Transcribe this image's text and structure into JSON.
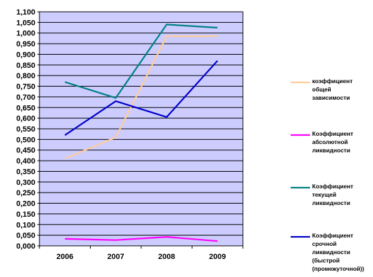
{
  "chart_data": {
    "type": "line",
    "categories": [
      "2006",
      "2007",
      "2008",
      "2009"
    ],
    "ylim": [
      0,
      1.1
    ],
    "y_ticks": [
      "0,000",
      "0,050",
      "0,100",
      "0,150",
      "0,200",
      "0,250",
      "0,300",
      "0,350",
      "0,400",
      "0,450",
      "0,500",
      "0,550",
      "0,600",
      "0,650",
      "0,700",
      "0,750",
      "0,800",
      "0,850",
      "0,900",
      "0,950",
      "1,000",
      "1,050",
      "1,100"
    ],
    "grid": true,
    "legend_position": "right",
    "plot_background": "#ccccff",
    "series": [
      {
        "name": "коэффициент общей зависимости",
        "legend_lines": [
          "коэффициент",
          "общей",
          "зависимости"
        ],
        "color": "#ffcc99",
        "values": [
          0.41,
          0.51,
          0.985,
          0.985
        ]
      },
      {
        "name": "Коэффициент абсолютной ликвидности",
        "legend_lines": [
          "Коэффициент",
          "абсолютной",
          "ликвидности"
        ],
        "color": "#ff00ff",
        "values": [
          0.033,
          0.027,
          0.042,
          0.022
        ]
      },
      {
        "name": "Коэффициент текущей ликвидности",
        "legend_lines": [
          "Коэффициент",
          "текущей",
          "ликвидности"
        ],
        "color": "#008080",
        "values": [
          0.77,
          0.695,
          1.04,
          1.025
        ]
      },
      {
        "name": "Коэффициент срочной ликвидности (быстрой (промежуточной))",
        "legend_lines": [
          "Коэффициент",
          "срочной",
          "ликвидности",
          "(быстрой",
          "(промежуточной))"
        ],
        "color": "#0000cc",
        "values": [
          0.52,
          0.68,
          0.605,
          0.87
        ]
      }
    ]
  }
}
